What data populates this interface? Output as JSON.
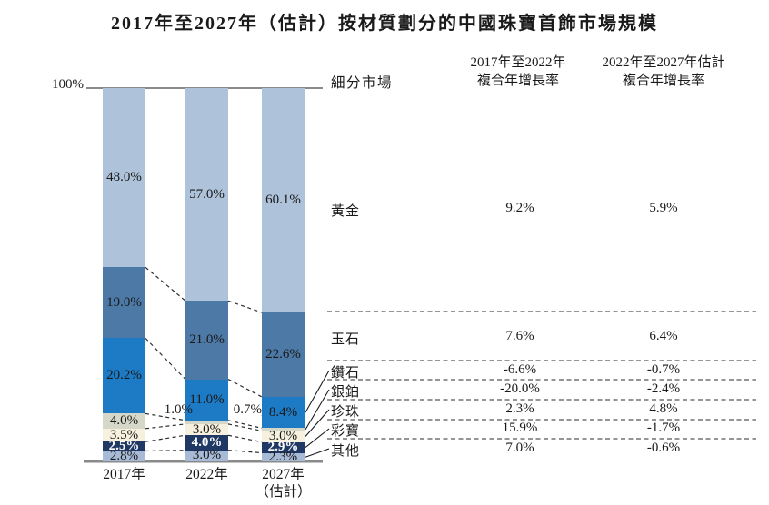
{
  "title": "2017年至2027年（估計）按材質劃分的中國珠寶首飾市場規模",
  "chart": {
    "axis_top_label": "100%",
    "categories": [
      {
        "label": "2017年",
        "sublabel": ""
      },
      {
        "label": "2022年",
        "sublabel": ""
      },
      {
        "label": "2027年",
        "sublabel": "（估計）"
      }
    ]
  },
  "chart_data": {
    "type": "bar",
    "stacked": true,
    "unit": "percent",
    "title": "2017年至2027年（估計）按材質劃分的中國珠寶首飾市場規模",
    "categories": [
      "2017年",
      "2022年",
      "2027年（估計）"
    ],
    "ylim": [
      0,
      100
    ],
    "y_axis_top_tick": "100%",
    "stack_order": "top-to-bottom",
    "series": [
      {
        "name": "黃金",
        "values": [
          48.0,
          57.0,
          60.1
        ],
        "color": "#aec2d9",
        "label_color": "#1a1a1a"
      },
      {
        "name": "玉石",
        "values": [
          19.0,
          21.0,
          22.6
        ],
        "color": "#4d79a6",
        "label_color": "#1a1a1a"
      },
      {
        "name": "鑽石",
        "values": [
          20.2,
          11.0,
          8.4
        ],
        "color": "#1d7ac4",
        "label_color": "#1a1a1a"
      },
      {
        "name": "銀鉑",
        "values": [
          4.0,
          1.0,
          0.7
        ],
        "color": "#d5d8c9",
        "label_color": "#1a1a1a"
      },
      {
        "name": "珍珠",
        "values": [
          3.5,
          3.0,
          3.0
        ],
        "color": "#f6f1de",
        "label_color": "#1a1a1a"
      },
      {
        "name": "彩寶",
        "values": [
          2.5,
          4.0,
          2.9
        ],
        "color": "#1f3864",
        "label_color": "#ffffff"
      },
      {
        "name": "其他",
        "values": [
          2.8,
          3.0,
          2.3
        ],
        "color": "#a7bbd7",
        "label_color": "#1a1a1a"
      }
    ]
  },
  "table": {
    "header_market": "細分市場",
    "header_col1": "2017年至2022年\n複合年增長率",
    "header_col2": "2022年至2027年估計\n複合年增長率",
    "rows": [
      {
        "label": "黃金",
        "cagr_2017_2022": "9.2%",
        "cagr_2022_2027": "5.9%"
      },
      {
        "label": "玉石",
        "cagr_2017_2022": "7.6%",
        "cagr_2022_2027": "6.4%"
      },
      {
        "label": "鑽石",
        "cagr_2017_2022": "-6.6%",
        "cagr_2022_2027": "-0.7%"
      },
      {
        "label": "銀鉑",
        "cagr_2017_2022": "-20.0%",
        "cagr_2022_2027": "-2.4%"
      },
      {
        "label": "珍珠",
        "cagr_2017_2022": "2.3%",
        "cagr_2022_2027": "4.8%"
      },
      {
        "label": "彩寶",
        "cagr_2017_2022": "15.9%",
        "cagr_2022_2027": "-1.7%"
      },
      {
        "label": "其他",
        "cagr_2017_2022": "7.0%",
        "cagr_2022_2027": "-0.6%"
      }
    ]
  }
}
